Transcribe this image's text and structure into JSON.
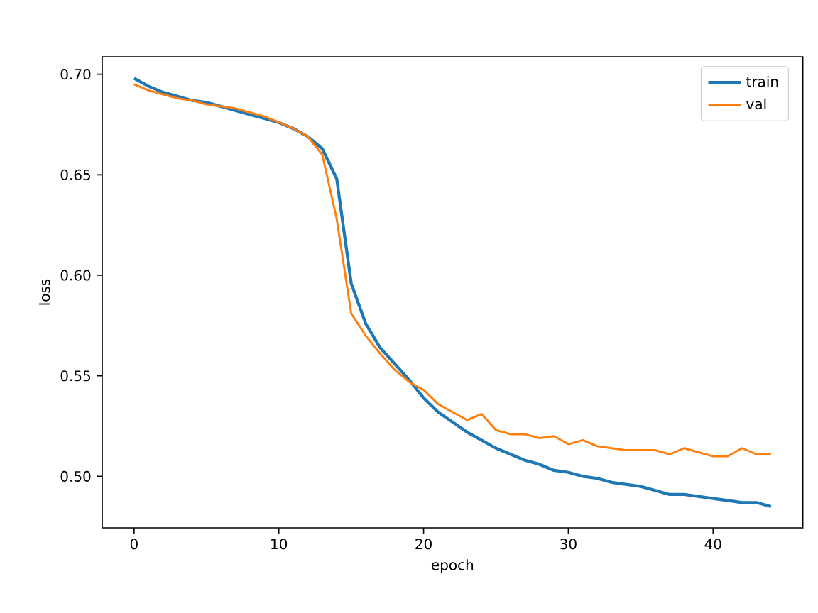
{
  "chart_data": {
    "type": "line",
    "xlabel": "epoch",
    "ylabel": "loss",
    "x": [
      0,
      1,
      2,
      3,
      4,
      5,
      6,
      7,
      8,
      9,
      10,
      11,
      12,
      13,
      14,
      15,
      16,
      17,
      18,
      19,
      20,
      21,
      22,
      23,
      24,
      25,
      26,
      27,
      28,
      29,
      30,
      31,
      32,
      33,
      34,
      35,
      36,
      37,
      38,
      39,
      40,
      41,
      42,
      43,
      44
    ],
    "series": [
      {
        "name": "train",
        "color": "#1f77b4",
        "values": [
          0.698,
          0.694,
          0.691,
          0.689,
          0.687,
          0.686,
          0.684,
          0.682,
          0.68,
          0.678,
          0.676,
          0.673,
          0.669,
          0.663,
          0.648,
          0.596,
          0.576,
          0.564,
          0.556,
          0.548,
          0.539,
          0.532,
          0.527,
          0.522,
          0.518,
          0.514,
          0.511,
          0.508,
          0.506,
          0.503,
          0.502,
          0.5,
          0.499,
          0.497,
          0.496,
          0.495,
          0.493,
          0.491,
          0.491,
          0.49,
          0.489,
          0.488,
          0.487,
          0.487,
          0.485
        ]
      },
      {
        "name": "val",
        "color": "#ff7f0e",
        "values": [
          0.695,
          0.692,
          0.69,
          0.688,
          0.687,
          0.685,
          0.684,
          0.683,
          0.681,
          0.679,
          0.676,
          0.673,
          0.669,
          0.66,
          0.628,
          0.581,
          0.57,
          0.561,
          0.553,
          0.547,
          0.543,
          0.536,
          0.532,
          0.528,
          0.531,
          0.523,
          0.521,
          0.521,
          0.519,
          0.52,
          0.516,
          0.518,
          0.515,
          0.514,
          0.513,
          0.513,
          0.513,
          0.511,
          0.514,
          0.512,
          0.51,
          0.51,
          0.514,
          0.511,
          0.511
        ]
      }
    ],
    "xlim": [
      -2.2,
      46.2
    ],
    "ylim": [
      0.4744,
      0.7087
    ],
    "xticks": [
      0,
      10,
      20,
      30,
      40
    ],
    "yticks": [
      {
        "value": 0.5,
        "label": "0.50"
      },
      {
        "value": 0.55,
        "label": "0.55"
      },
      {
        "value": 0.6,
        "label": "0.60"
      },
      {
        "value": 0.65,
        "label": "0.65"
      },
      {
        "value": 0.7,
        "label": "0.70"
      }
    ],
    "legend": "top right",
    "grid": false,
    "marker": "none",
    "line_style": "solid"
  }
}
